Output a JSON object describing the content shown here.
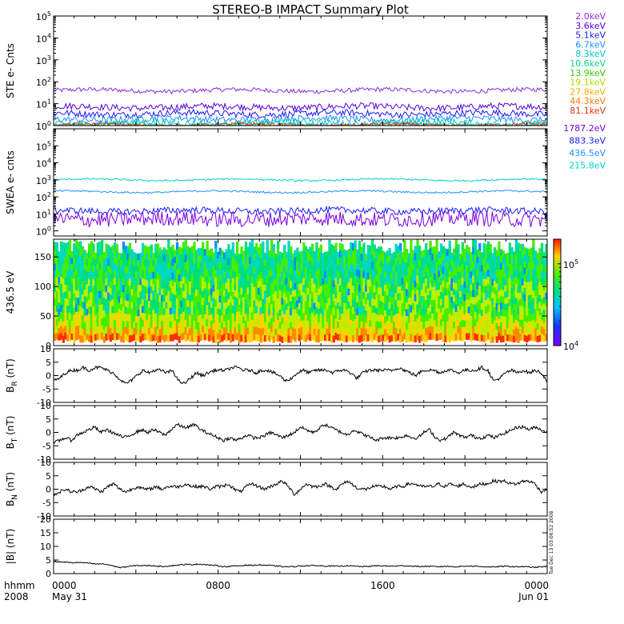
{
  "title": "STEREO-B IMPACT Summary Plot",
  "time_axis": {
    "row1_labels": [
      "hhmm",
      "0000",
      "0800",
      "1600",
      "0000"
    ],
    "row2_labels": [
      "2008",
      "May 31",
      "Jun 01"
    ],
    "range": [
      "2008-05-31T00:00",
      "2008-06-01T00:00"
    ]
  },
  "side_stamp": "Tue Dec 13 03:06:52 2008",
  "colors": {
    "2.0keV": "#8a2be2",
    "3.6keV": "#5a00d8",
    "5.1keV": "#1a1aff",
    "6.7keV": "#1e90ff",
    "8.3keV": "#00c8c8",
    "10.6keV": "#00d68a",
    "13.9keV": "#33cc00",
    "19.1keV": "#b8d600",
    "27.8keV": "#f0b000",
    "44.3keV": "#ff7a00",
    "81.1keV": "#e03010",
    "1787.2eV": "#7a00e0",
    "883.3eV": "#1a1aff",
    "436.5eV": "#1e90ff",
    "215.8eV": "#00d2c8",
    "mag_line": "#000000"
  },
  "chart_data": [
    {
      "type": "line",
      "ylabel": "STE e- Cnts",
      "scale": "log",
      "ylim": [
        1,
        100000
      ],
      "yticks": [
        {
          "base": "10",
          "exp": "0"
        },
        {
          "base": "10",
          "exp": "1"
        },
        {
          "base": "10",
          "exp": "2"
        },
        {
          "base": "10",
          "exp": "3"
        },
        {
          "base": "10",
          "exp": "4"
        },
        {
          "base": "10",
          "exp": "5"
        }
      ],
      "legend": [
        "2.0keV",
        "3.6keV",
        "5.1keV",
        "6.7keV",
        "8.3keV",
        "10.6keV",
        "13.9keV",
        "19.1keV",
        "27.8keV",
        "44.3keV",
        "81.1keV"
      ],
      "series": [
        {
          "name": "2.0keV",
          "level": 40,
          "spread": 0.1
        },
        {
          "name": "3.6keV",
          "level": 7,
          "spread": 0.15
        },
        {
          "name": "5.1keV",
          "level": 3.5,
          "spread": 0.15
        },
        {
          "name": "6.7keV",
          "level": 2,
          "spread": 0.15
        },
        {
          "name": "8.3keV",
          "level": 1.3,
          "spread": 0.15
        },
        {
          "name": "10.6keV",
          "level": 1.1,
          "spread": 0.1
        },
        {
          "name": "81.1keV",
          "level": 1.05,
          "spread": 0.08
        }
      ]
    },
    {
      "type": "line",
      "ylabel": "SWEA e- cnts",
      "scale": "log",
      "ylim": [
        0.5,
        1000000
      ],
      "yticks": [
        {
          "base": "10",
          "exp": "0"
        },
        {
          "base": "10",
          "exp": "1"
        },
        {
          "base": "10",
          "exp": "2"
        },
        {
          "base": "10",
          "exp": "3"
        },
        {
          "base": "10",
          "exp": "4"
        },
        {
          "base": "10",
          "exp": "5"
        }
      ],
      "legend": [
        "1787.2eV",
        "883.3eV",
        "436.5eV",
        "215.8eV"
      ],
      "series": [
        {
          "name": "215.8eV",
          "level": 1000,
          "spread": 0.05
        },
        {
          "name": "436.5eV",
          "level": 200,
          "spread": 0.05
        },
        {
          "name": "883.3eV",
          "level": 15,
          "spread": 0.2
        },
        {
          "name": "1787.2eV",
          "level": 5,
          "spread": 0.45
        }
      ]
    },
    {
      "type": "heatmap",
      "ylabel": "436.5 eV",
      "ylim": [
        0,
        180
      ],
      "yticks": [
        "0",
        "50",
        "100",
        "150"
      ],
      "colorbar": {
        "scale": "log",
        "range": [
          10000,
          200000
        ],
        "ticks": [
          {
            "base": "10",
            "exp": "4"
          },
          {
            "base": "10",
            "exp": "5"
          }
        ]
      }
    },
    {
      "type": "line",
      "ylabel": "B",
      "ylabel_sub": "R",
      "ylabel_unit": "(nT)",
      "ylim": [
        -10,
        10
      ],
      "yticks": [
        "-10",
        "-5",
        "0",
        "5",
        "10"
      ],
      "profile": [
        -2,
        -1,
        1,
        2,
        2,
        3,
        2,
        3,
        3,
        2,
        1,
        -1,
        -3,
        -2,
        0,
        2,
        1,
        2,
        2,
        1,
        2,
        -2,
        -3,
        -1,
        1,
        0,
        1,
        2,
        2,
        2,
        3,
        3,
        2,
        2,
        1,
        2,
        2,
        1,
        0,
        -2,
        -1,
        1,
        2,
        1,
        2,
        2,
        2,
        1,
        2,
        2,
        1,
        -1,
        1,
        2,
        2,
        2,
        2,
        2,
        3,
        2,
        1,
        0,
        2,
        2,
        2,
        1,
        2,
        2,
        1,
        2,
        2,
        2,
        3,
        2,
        -2,
        -1,
        1,
        2,
        1,
        2,
        1,
        2,
        1,
        -2
      ]
    },
    {
      "type": "line",
      "ylabel": "B",
      "ylabel_sub": "T",
      "ylabel_unit": "(nT)",
      "ylim": [
        -10,
        10
      ],
      "yticks": [
        "-10",
        "-5",
        "0",
        "5",
        "10"
      ],
      "profile": [
        -4,
        -3,
        -2,
        -3,
        -1,
        0,
        1,
        2,
        0,
        1,
        0,
        -1,
        -2,
        -1,
        0,
        1,
        0,
        1,
        0,
        -1,
        1,
        3,
        2,
        2,
        3,
        1,
        0,
        -1,
        -2,
        -3,
        -2,
        -3,
        -2,
        -1,
        -2,
        -2,
        -1,
        0,
        -1,
        -2,
        -1,
        0,
        2,
        1,
        0,
        1,
        3,
        2,
        1,
        0,
        -1,
        1,
        0,
        -1,
        -2,
        -3,
        -2,
        -2,
        -2,
        -2,
        -1,
        -2,
        -2,
        0,
        1,
        -2,
        -3,
        -2,
        0,
        -1,
        -2,
        -1,
        -2,
        -2,
        -1,
        -2,
        -1,
        0,
        1,
        2,
        2,
        1,
        2,
        1,
        0
      ]
    },
    {
      "type": "line",
      "ylabel": "B",
      "ylabel_sub": "N",
      "ylabel_unit": "(nT)",
      "ylim": [
        -10,
        10
      ],
      "yticks": [
        "-10",
        "-5",
        "0",
        "5",
        "10"
      ],
      "profile": [
        -2,
        -1,
        0,
        -1,
        -1,
        0,
        1,
        0,
        -1,
        1,
        2,
        0,
        -1,
        0,
        1,
        0,
        0,
        1,
        0,
        1,
        1,
        1,
        2,
        1,
        1,
        1,
        0,
        1,
        1,
        2,
        0,
        -1,
        1,
        2,
        1,
        0,
        1,
        2,
        3,
        1,
        -2,
        0,
        2,
        1,
        1,
        2,
        1,
        0,
        2,
        3,
        1,
        0,
        0,
        1,
        1,
        1,
        0,
        1,
        1,
        2,
        2,
        1,
        1,
        1,
        2,
        1,
        2,
        1,
        2,
        1,
        1,
        2,
        2,
        3,
        3,
        3,
        2,
        2,
        3,
        3,
        2,
        -1,
        0
      ]
    },
    {
      "type": "line",
      "ylabel": "|B|",
      "ylabel_unit": "(nT)",
      "ylim": [
        0,
        20
      ],
      "yticks": [
        "0",
        "5",
        "10",
        "15",
        "20"
      ],
      "profile": [
        4.5,
        4.3,
        4.2,
        4.0,
        4.1,
        4.0,
        3.8,
        3.5,
        3.6,
        3.3,
        2.8,
        2.2,
        2.5,
        2.8,
        3.0,
        2.9,
        3.0,
        2.8,
        2.6,
        2.8,
        3.0,
        3.2,
        3.4,
        3.3,
        3.5,
        3.4,
        3.1,
        3.0,
        2.6,
        2.6,
        2.8,
        2.9,
        3.1,
        3.0,
        3.2,
        3.1,
        3.0,
        2.8,
        2.6,
        2.5,
        2.6,
        2.8,
        2.9,
        3.0,
        2.9,
        2.8,
        2.8,
        2.7,
        2.8,
        2.9,
        2.7,
        2.6,
        2.6,
        2.8,
        2.9,
        2.8,
        2.7,
        2.8,
        2.9,
        2.8,
        2.7,
        2.6,
        2.7,
        2.6,
        2.5,
        2.7,
        2.6,
        2.5,
        2.7,
        2.8,
        2.7,
        2.6,
        2.5,
        2.4,
        2.6,
        2.7,
        2.6,
        2.5,
        2.6,
        2.4,
        2.3,
        2.5,
        2.6
      ]
    }
  ]
}
